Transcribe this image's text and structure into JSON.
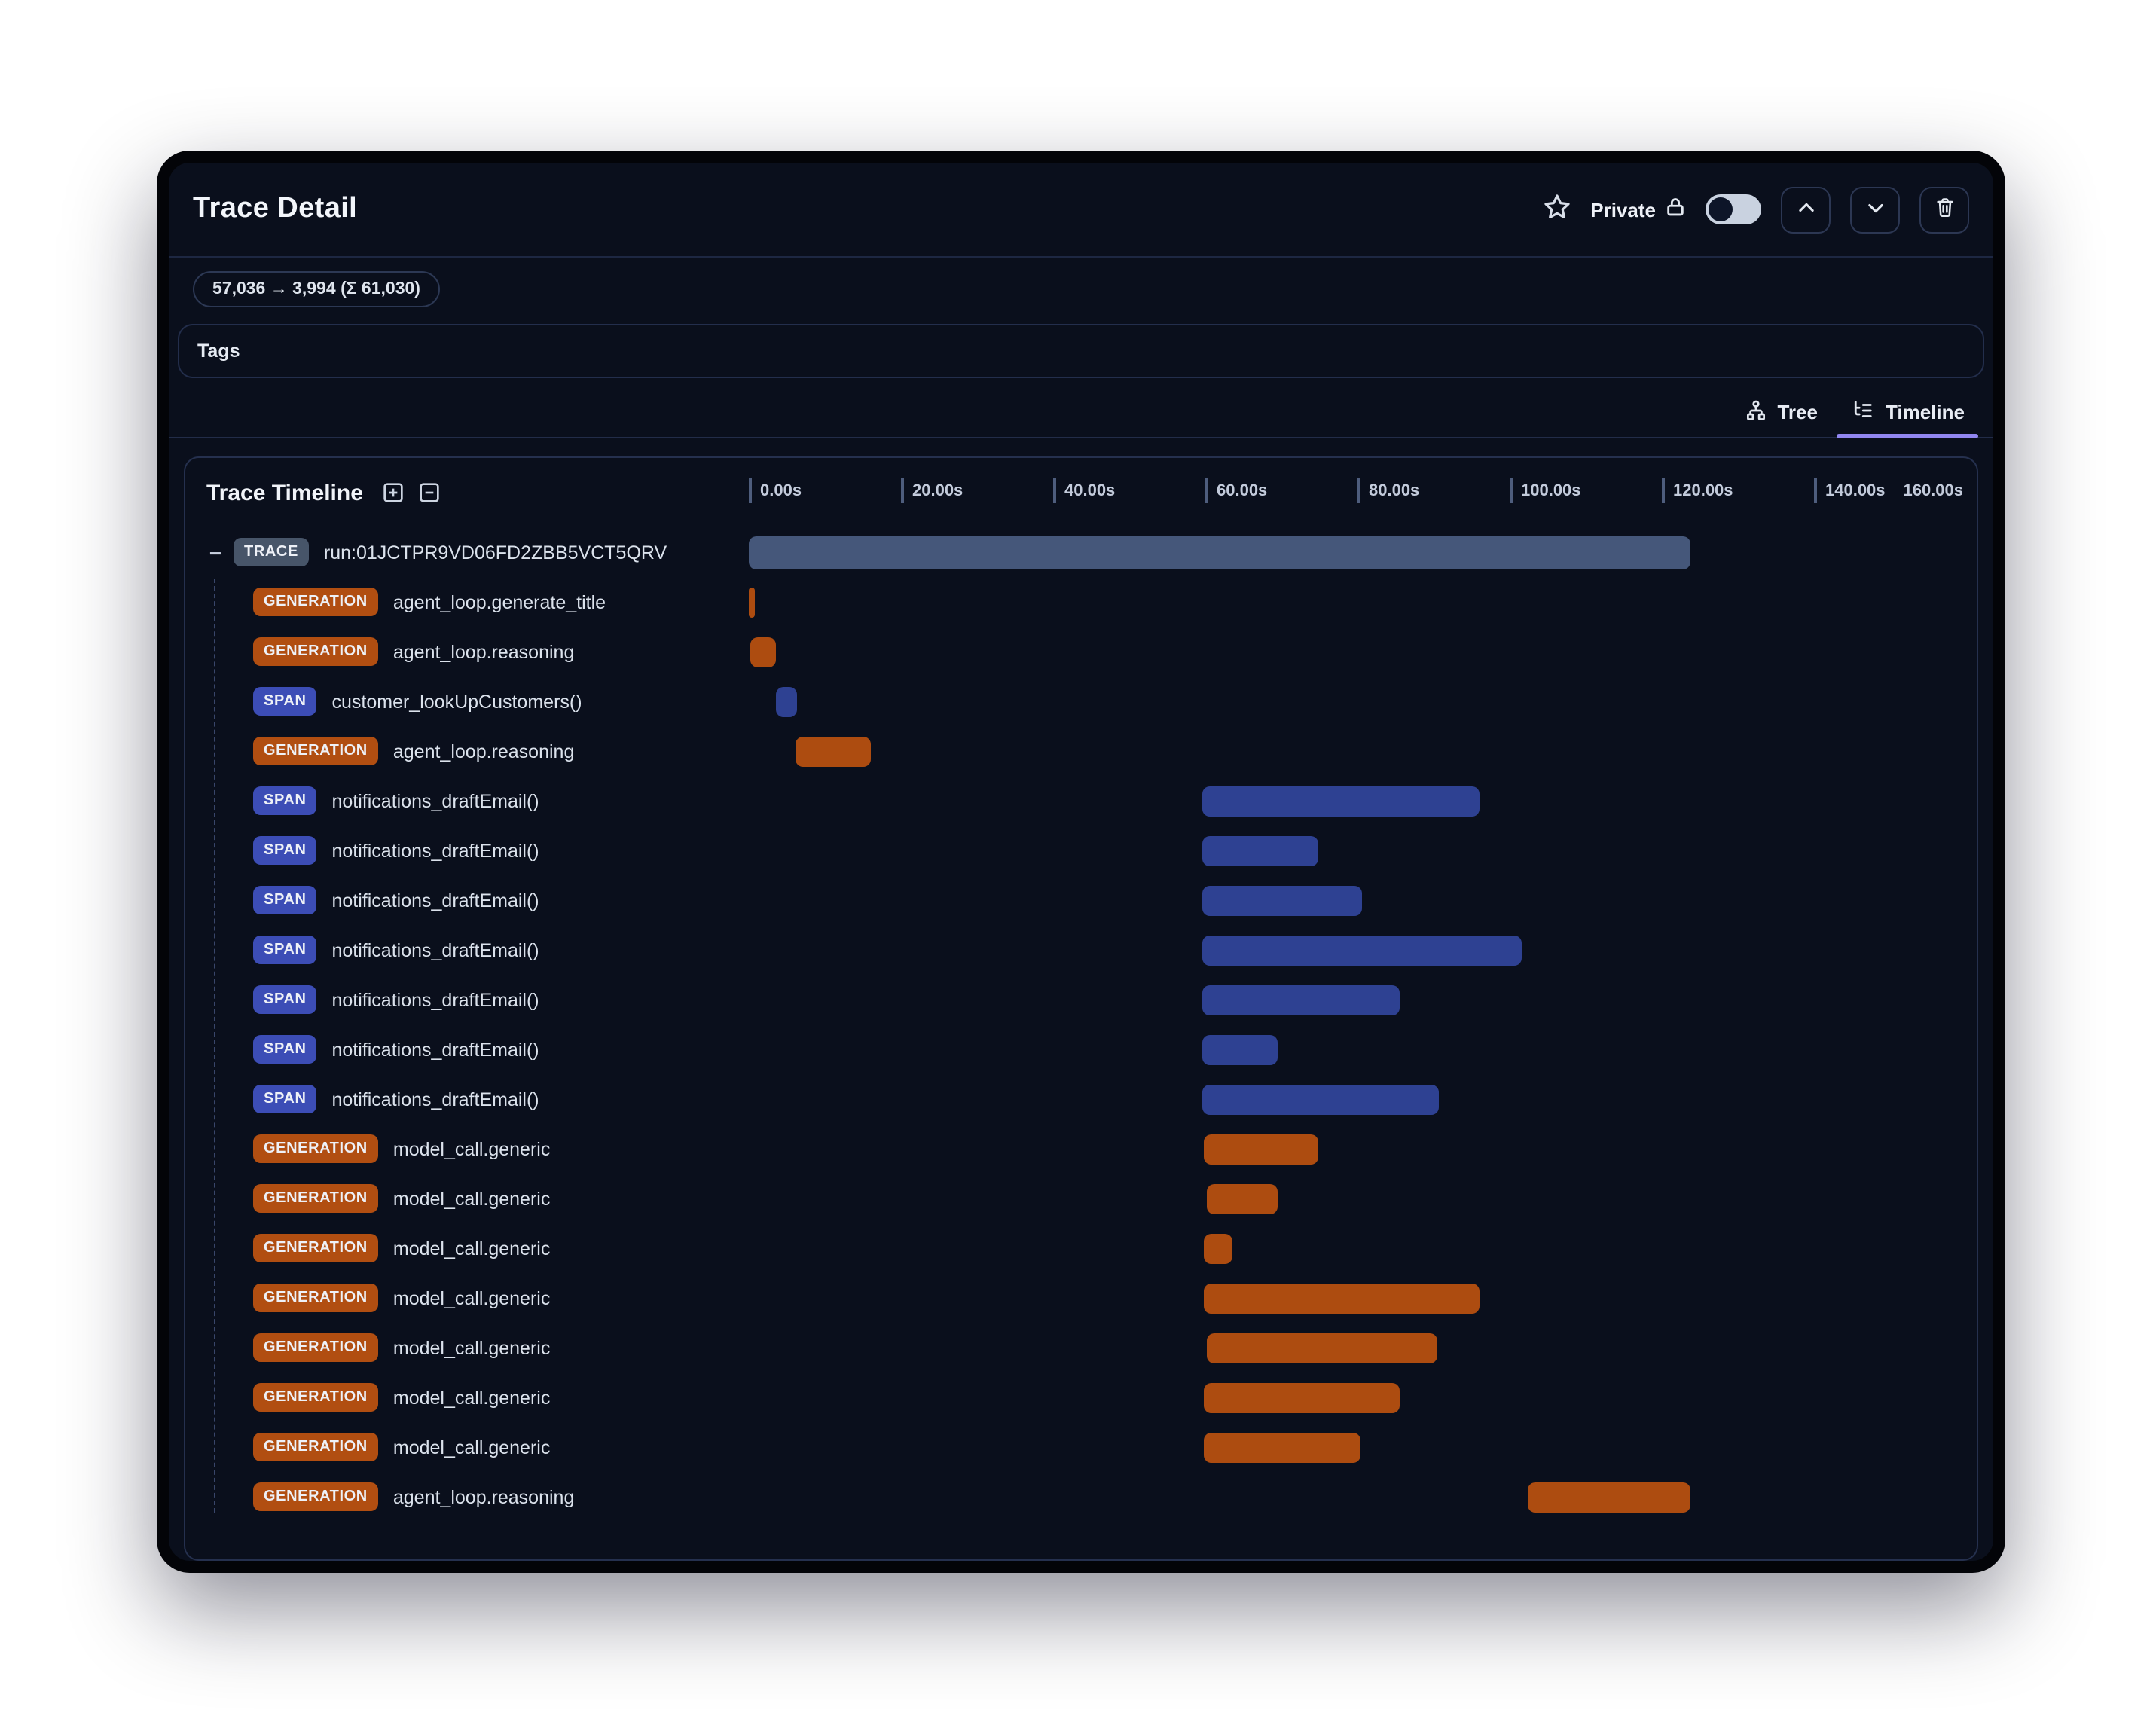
{
  "header": {
    "title": "Trace Detail",
    "privacy_label": "Private",
    "token_usage": "57,036 → 3,994 (Σ 61,030)"
  },
  "tags": {
    "label": "Tags"
  },
  "tabs": [
    {
      "label": "Tree",
      "active": false
    },
    {
      "label": "Timeline",
      "active": true
    }
  ],
  "timeline": {
    "title": "Trace Timeline",
    "axis": {
      "tick_labels": [
        "0.00s",
        "20.00s",
        "40.00s",
        "60.00s",
        "80.00s",
        "100.00s",
        "120.00s",
        "140.00s"
      ],
      "end_label": "160.00s",
      "tick_interval_s": 20,
      "max_seconds": 160
    },
    "rows": [
      {
        "type": "TRACE",
        "name": "run:01JCTPR9VD06FD2ZBB5VCT5QRV",
        "start_s": 0,
        "duration_s": 123.8
      },
      {
        "type": "GENERATION",
        "name": "agent_loop.generate_title",
        "start_s": 0,
        "duration_s": 0.7
      },
      {
        "type": "GENERATION",
        "name": "agent_loop.reasoning",
        "start_s": 0.1,
        "duration_s": 3.5
      },
      {
        "type": "SPAN",
        "name": "customer_lookUpCustomers()",
        "start_s": 3.6,
        "duration_s": 2.7
      },
      {
        "type": "GENERATION",
        "name": "agent_loop.reasoning",
        "start_s": 6.2,
        "duration_s": 9.9
      },
      {
        "type": "SPAN",
        "name": "notifications_draftEmail()",
        "start_s": 59.6,
        "duration_s": 36.5
      },
      {
        "type": "SPAN",
        "name": "notifications_draftEmail()",
        "start_s": 59.6,
        "duration_s": 15.2
      },
      {
        "type": "SPAN",
        "name": "notifications_draftEmail()",
        "start_s": 59.6,
        "duration_s": 20.9
      },
      {
        "type": "SPAN",
        "name": "notifications_draftEmail()",
        "start_s": 59.6,
        "duration_s": 42.0
      },
      {
        "type": "SPAN",
        "name": "notifications_draftEmail()",
        "start_s": 59.6,
        "duration_s": 26.0
      },
      {
        "type": "SPAN",
        "name": "notifications_draftEmail()",
        "start_s": 59.6,
        "duration_s": 9.9
      },
      {
        "type": "SPAN",
        "name": "notifications_draftEmail()",
        "start_s": 59.6,
        "duration_s": 31.1
      },
      {
        "type": "GENERATION",
        "name": "model_call.generic",
        "start_s": 59.8,
        "duration_s": 15.0
      },
      {
        "type": "GENERATION",
        "name": "model_call.generic",
        "start_s": 60.1,
        "duration_s": 9.5
      },
      {
        "type": "GENERATION",
        "name": "model_call.generic",
        "start_s": 59.8,
        "duration_s": 3.8
      },
      {
        "type": "GENERATION",
        "name": "model_call.generic",
        "start_s": 59.8,
        "duration_s": 36.3
      },
      {
        "type": "GENERATION",
        "name": "model_call.generic",
        "start_s": 60.1,
        "duration_s": 30.4
      },
      {
        "type": "GENERATION",
        "name": "model_call.generic",
        "start_s": 59.8,
        "duration_s": 25.7
      },
      {
        "type": "GENERATION",
        "name": "model_call.generic",
        "start_s": 59.8,
        "duration_s": 20.6
      },
      {
        "type": "GENERATION",
        "name": "agent_loop.reasoning",
        "start_s": 102.3,
        "duration_s": 21.5
      }
    ]
  },
  "colors": {
    "trace_badge": "#475569",
    "trace_bar": "#45577a",
    "generation_badge": "#b14e11",
    "generation_bar": "#ad4c10",
    "span_badge": "#3c4db6",
    "span_bar": "#2e4192",
    "tab_accent": "#9186f0",
    "window_bg": "#0a0f1c"
  }
}
